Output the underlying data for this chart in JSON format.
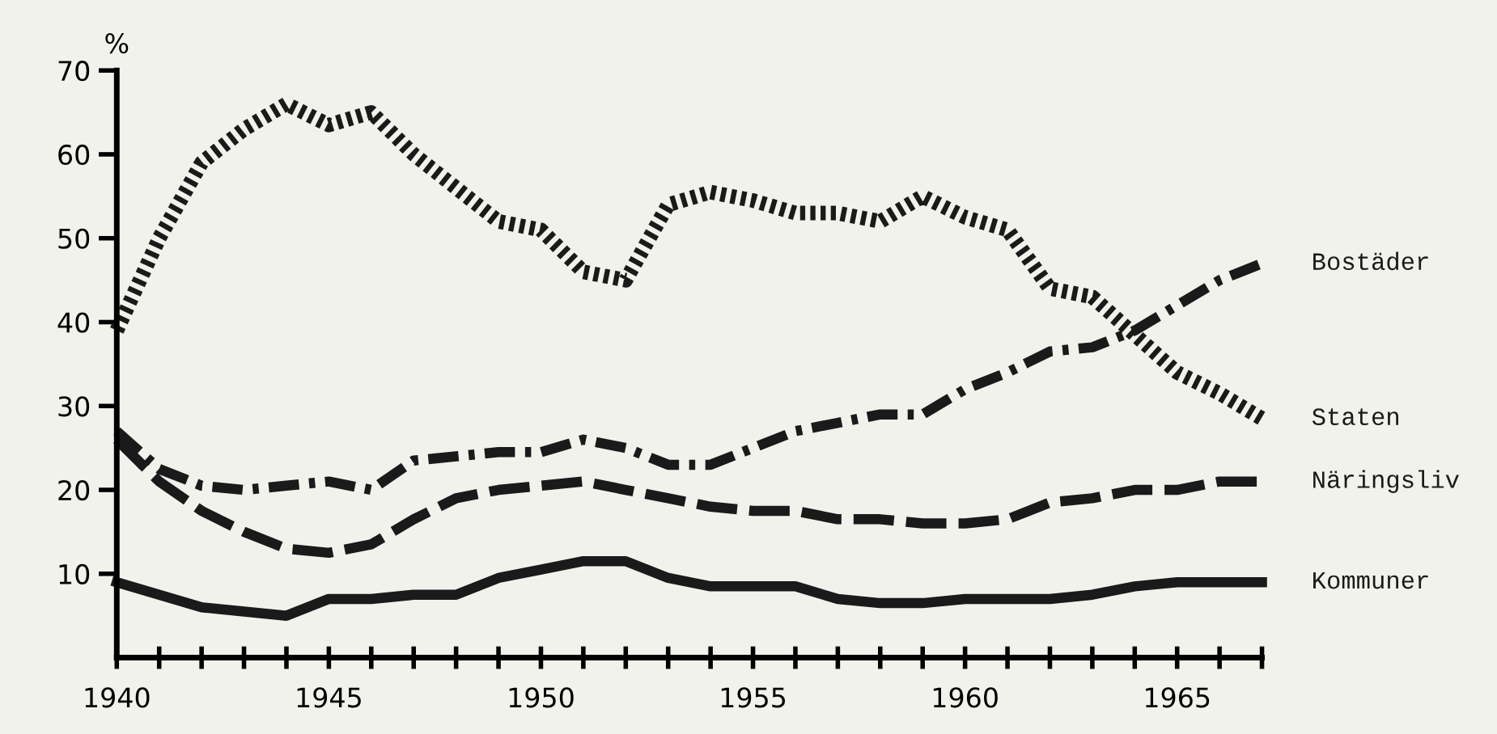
{
  "chart_data": {
    "type": "line",
    "ylabel": "%",
    "x": [
      1940,
      1941,
      1942,
      1943,
      1944,
      1945,
      1946,
      1947,
      1948,
      1949,
      1950,
      1951,
      1952,
      1953,
      1954,
      1955,
      1956,
      1957,
      1958,
      1959,
      1960,
      1961,
      1962,
      1963,
      1964,
      1965,
      1966,
      1967
    ],
    "series": [
      {
        "name": "Bostäder",
        "color": "#1a1a1a",
        "line_style": "dashdot",
        "values": [
          27,
          22.5,
          20.5,
          20,
          20.5,
          21,
          20,
          23.5,
          24,
          24.5,
          24.5,
          26,
          25,
          23,
          23,
          25,
          27,
          28,
          29,
          29,
          32,
          34,
          36.5,
          37,
          39,
          42,
          45,
          47
        ]
      },
      {
        "name": "Staten",
        "color": "#1a1a1a",
        "line_style": "dotted",
        "values": [
          39,
          50,
          59,
          63,
          66,
          63.5,
          65,
          60,
          56,
          52,
          51,
          46,
          45,
          54,
          55.5,
          54.5,
          53,
          53,
          52,
          55,
          52.5,
          51,
          44,
          43,
          38.5,
          34,
          31.5,
          28.5
        ]
      },
      {
        "name": "Näringsliv",
        "color": "#1a1a1a",
        "line_style": "dashed",
        "values": [
          26,
          21,
          17.5,
          15,
          13,
          12.5,
          13.5,
          16.5,
          19,
          20,
          20.5,
          21,
          20,
          19,
          18,
          17.5,
          17.5,
          16.5,
          16.5,
          16,
          16,
          16.5,
          18.5,
          19,
          20,
          20,
          21,
          21
        ]
      },
      {
        "name": "Kommuner",
        "color": "#1a1a1a",
        "line_style": "solid",
        "values": [
          9,
          7.5,
          6,
          5.5,
          5,
          7,
          7,
          7.5,
          7.5,
          9.5,
          10.5,
          11.5,
          11.5,
          9.5,
          8.5,
          8.5,
          8.5,
          7,
          6.5,
          6.5,
          7,
          7,
          7,
          7.5,
          8.5,
          9,
          9,
          9
        ]
      }
    ],
    "xlim": [
      1940,
      1967
    ],
    "xticks": [
      1940,
      {
        "value": 1941,
        "label": null
      },
      {
        "value": 1942,
        "label": null
      },
      {
        "value": 1943,
        "label": null
      },
      {
        "value": 1944,
        "label": null
      },
      1945,
      {
        "value": 1946,
        "label": null
      },
      {
        "value": 1947,
        "label": null
      },
      {
        "value": 1948,
        "label": null
      },
      {
        "value": 1949,
        "label": null
      },
      1950,
      {
        "value": 1951,
        "label": null
      },
      {
        "value": 1952,
        "label": null
      },
      {
        "value": 1953,
        "label": null
      },
      {
        "value": 1954,
        "label": null
      },
      1955,
      {
        "value": 1956,
        "label": null
      },
      {
        "value": 1957,
        "label": null
      },
      {
        "value": 1958,
        "label": null
      },
      {
        "value": 1959,
        "label": null
      },
      1960,
      {
        "value": 1961,
        "label": null
      },
      {
        "value": 1962,
        "label": null
      },
      {
        "value": 1963,
        "label": null
      },
      {
        "value": 1964,
        "label": null
      },
      1965,
      {
        "value": 1966,
        "label": null
      },
      {
        "value": 1967,
        "label": null
      }
    ],
    "ylim": [
      0,
      70
    ],
    "yticks": [
      10,
      20,
      30,
      40,
      50,
      60,
      70
    ],
    "grid": false,
    "legend": false,
    "marker": "none"
  }
}
